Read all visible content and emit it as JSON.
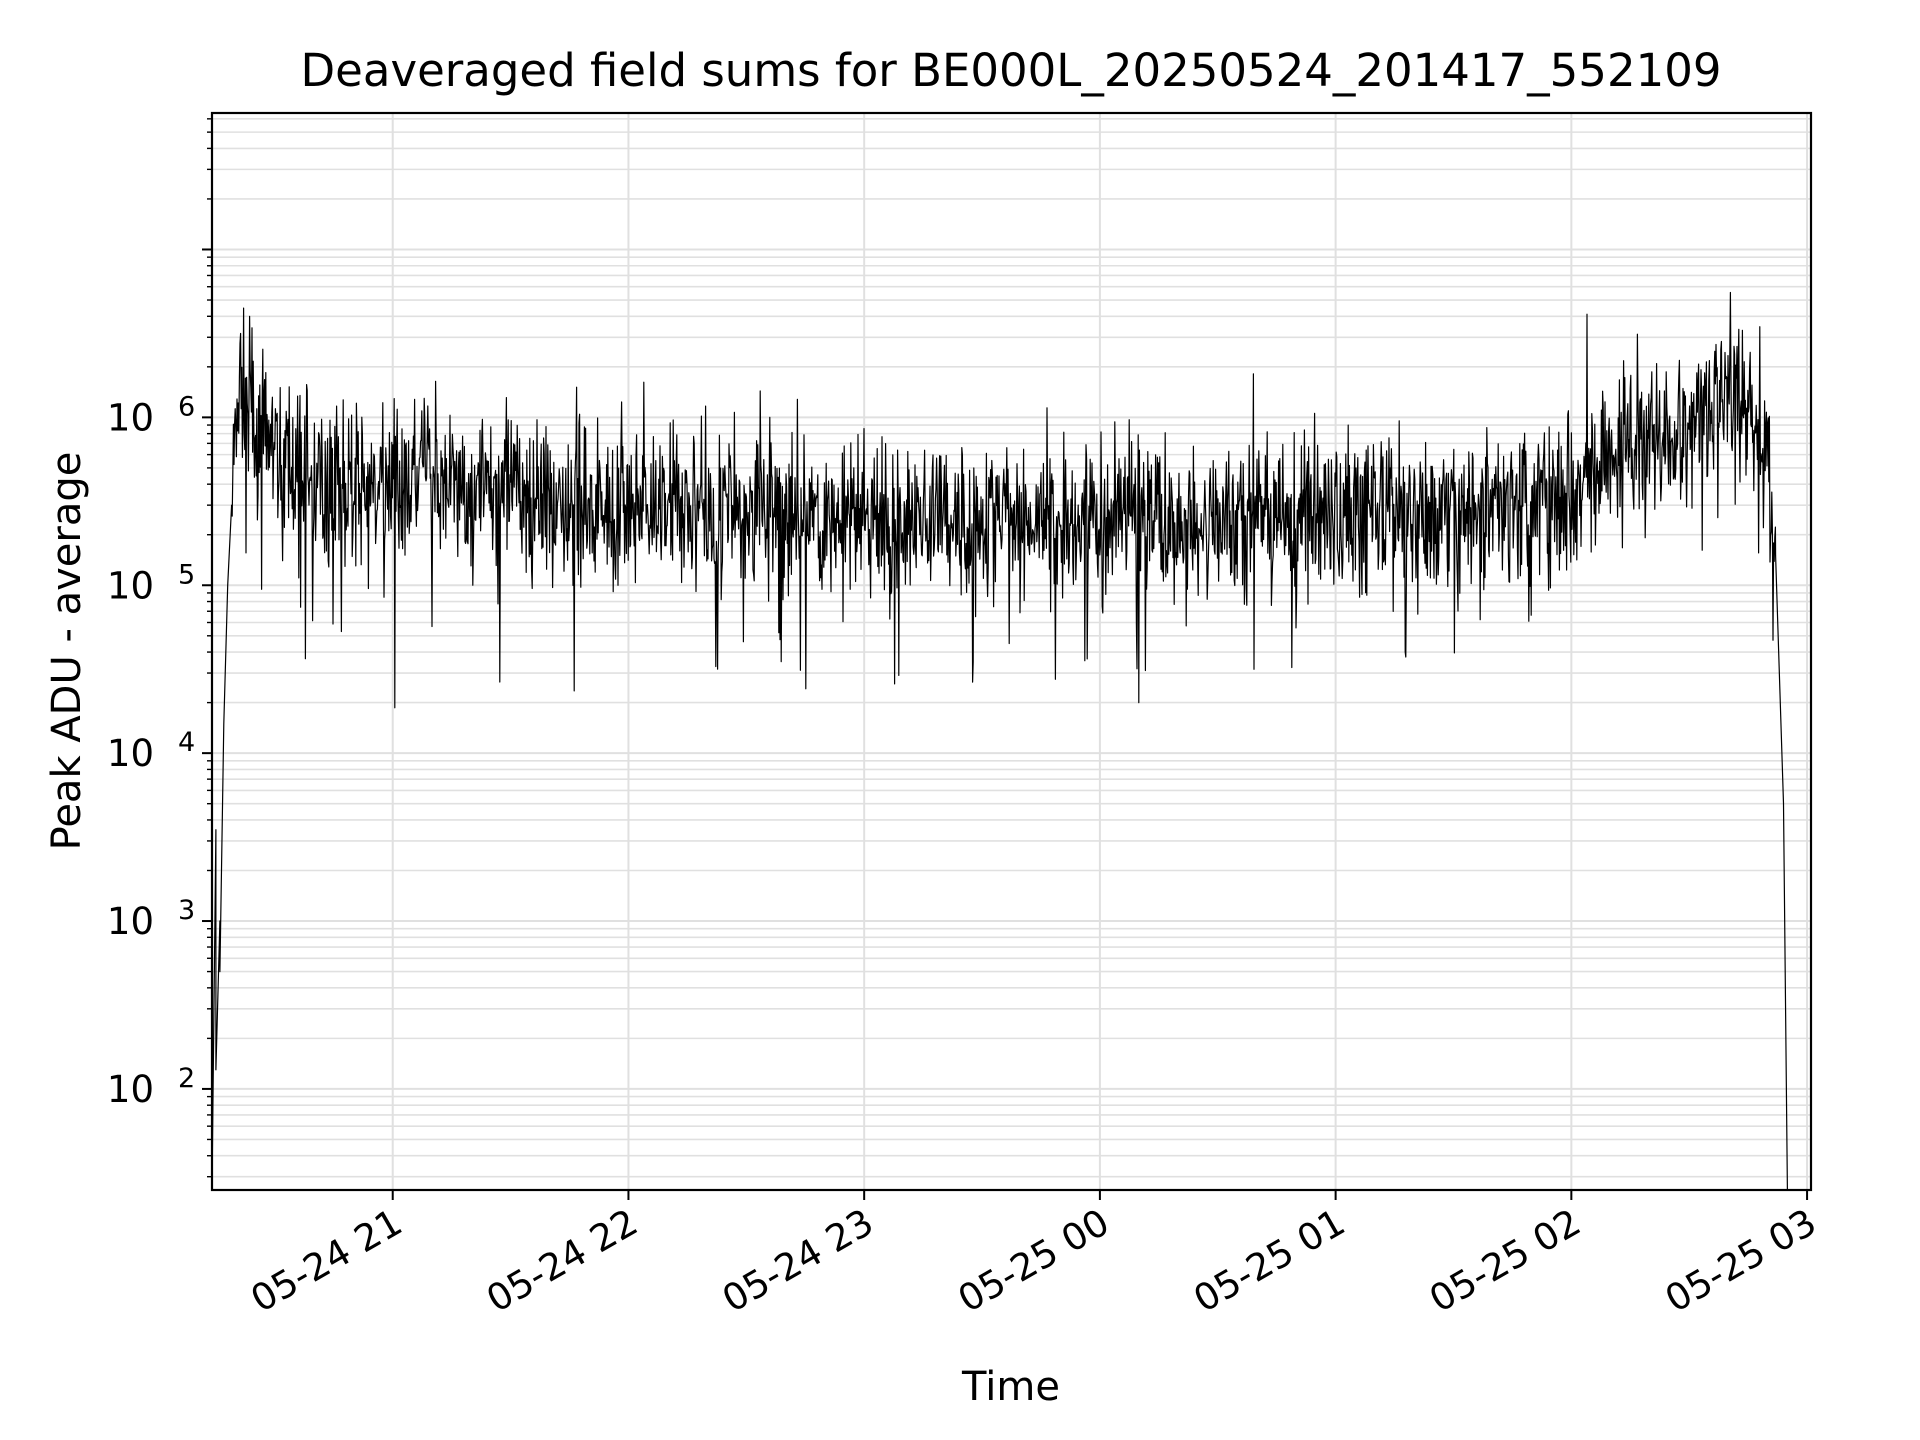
{
  "chart_data": {
    "type": "line",
    "title": "Deaveraged field sums for BE000L_20250524_201417_552109",
    "xlabel": "Time",
    "ylabel": "Peak ADU - average",
    "yscale": "log",
    "ylim": [
      25,
      65000000
    ],
    "xlim": [
      "2025-05-24 20:14",
      "2025-05-25 03:01"
    ],
    "grid": true,
    "line_color": "#000000",
    "grid_color": "#e0e0e0",
    "x_ticks": [
      {
        "label": "05-24 21",
        "value": "2025-05-24 21:00"
      },
      {
        "label": "05-24 22",
        "value": "2025-05-24 22:00"
      },
      {
        "label": "05-24 23",
        "value": "2025-05-24 23:00"
      },
      {
        "label": "05-25 00",
        "value": "2025-05-25 00:00"
      },
      {
        "label": "05-25 01",
        "value": "2025-05-25 01:00"
      },
      {
        "label": "05-25 02",
        "value": "2025-05-25 02:00"
      },
      {
        "label": "05-25 03",
        "value": "2025-05-25 03:00"
      }
    ],
    "y_ticks": [
      {
        "base": "10",
        "exp": "2",
        "value": 100
      },
      {
        "base": "10",
        "exp": "3",
        "value": 1000
      },
      {
        "base": "10",
        "exp": "4",
        "value": 10000
      },
      {
        "base": "10",
        "exp": "5",
        "value": 100000
      },
      {
        "base": "10",
        "exp": "6",
        "value": 1000000
      }
    ],
    "series": [
      {
        "x": [
          "2025-05-24 20:14",
          "2025-05-24 20:15",
          "2025-05-24 20:15",
          "2025-05-24 20:16",
          "2025-05-24 20:16",
          "2025-05-24 20:17",
          "2025-05-24 20:18",
          "2025-05-24 20:19",
          "2025-05-24 20:20",
          "2025-05-24 20:21",
          "2025-05-24 20:22",
          "2025-05-24 20:24",
          "2025-05-24 20:26",
          "2025-05-24 20:28",
          "2025-05-24 20:30",
          "2025-05-24 20:32",
          "2025-05-24 20:35",
          "2025-05-24 20:38",
          "2025-05-24 20:41",
          "2025-05-24 20:45",
          "2025-05-24 20:48",
          "2025-05-24 20:52",
          "2025-05-24 20:56",
          "2025-05-24 21:00",
          "2025-05-24 21:04",
          "2025-05-24 21:06",
          "2025-05-24 21:10",
          "2025-05-24 21:15",
          "2025-05-24 21:20",
          "2025-05-24 21:30",
          "2025-05-24 21:40",
          "2025-05-24 21:50",
          "2025-05-24 22:00",
          "2025-05-24 22:10",
          "2025-05-24 22:20",
          "2025-05-24 22:30",
          "2025-05-24 22:40",
          "2025-05-24 22:50",
          "2025-05-24 23:00",
          "2025-05-24 23:10",
          "2025-05-24 23:20",
          "2025-05-24 23:30",
          "2025-05-24 23:40",
          "2025-05-24 23:50",
          "2025-05-25 00:00",
          "2025-05-25 00:10",
          "2025-05-25 00:20",
          "2025-05-25 00:30",
          "2025-05-25 00:40",
          "2025-05-25 00:50",
          "2025-05-25 01:00",
          "2025-05-25 01:10",
          "2025-05-25 01:20",
          "2025-05-25 01:30",
          "2025-05-25 01:40",
          "2025-05-25 01:50",
          "2025-05-25 02:00",
          "2025-05-25 02:05",
          "2025-05-25 02:10",
          "2025-05-25 02:15",
          "2025-05-25 02:20",
          "2025-05-25 02:25",
          "2025-05-25 02:30",
          "2025-05-25 02:35",
          "2025-05-25 02:40",
          "2025-05-25 02:45",
          "2025-05-25 02:48",
          "2025-05-25 02:50",
          "2025-05-25 02:52",
          "2025-05-25 02:54",
          "2025-05-25 02:55"
        ],
        "y": [
          25,
          3500,
          130,
          1000,
          500,
          15000,
          100000,
          300000,
          800000,
          1800000,
          1300000,
          1100000,
          900000,
          700000,
          600000,
          550000,
          500000,
          450000,
          420000,
          400000,
          380000,
          370000,
          360000,
          400000,
          420000,
          500000,
          450000,
          400000,
          380000,
          350000,
          330000,
          320000,
          300000,
          290000,
          280000,
          270000,
          260000,
          250000,
          240000,
          240000,
          240000,
          240000,
          240000,
          240000,
          240000,
          240000,
          240000,
          250000,
          260000,
          270000,
          270000,
          270000,
          270000,
          280000,
          300000,
          330000,
          400000,
          450000,
          500000,
          600000,
          700000,
          800000,
          1000000,
          1200000,
          1300000,
          1200000,
          900000,
          500000,
          150000,
          5000,
          25
        ]
      }
    ]
  }
}
